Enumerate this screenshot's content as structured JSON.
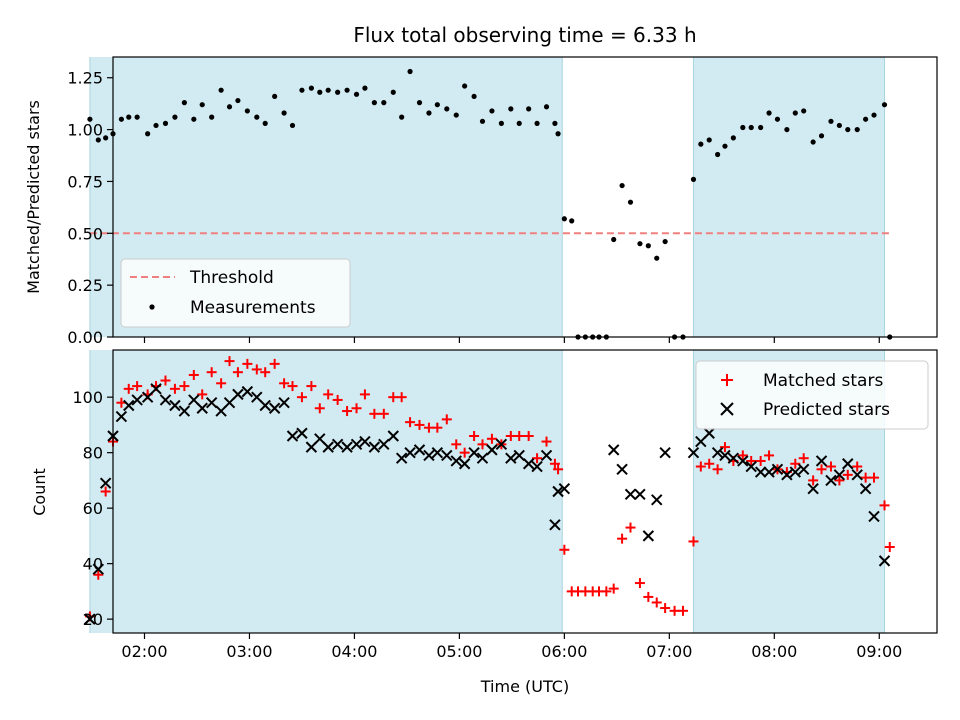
{
  "figure": {
    "title": "Flux total observing time = 6.33 h"
  },
  "chart_data": [
    {
      "type": "scatter",
      "panel": "top",
      "title": "Flux total observing time = 6.33 h",
      "xlabel": "",
      "ylabel": "Matched/Predicted stars",
      "xlim": [
        1.7,
        9.55
      ],
      "ylim": [
        0.0,
        1.35
      ],
      "yticks": [
        0.0,
        0.25,
        0.5,
        0.75,
        1.0,
        1.25
      ],
      "yticklabels": [
        "0.00",
        "0.25",
        "0.50",
        "0.75",
        "1.00",
        "1.25"
      ],
      "xticks": [
        2,
        3,
        4,
        5,
        6,
        7,
        8,
        9
      ],
      "xticklabels": [
        "",
        "",
        "",
        "",
        "",
        "",
        "",
        ""
      ],
      "x_unit": "hours UTC",
      "shaded_intervals": [
        [
          1.48,
          5.98
        ],
        [
          7.23,
          9.05
        ]
      ],
      "shade_color": "#add8e6",
      "legend_position": "lower-left",
      "legend": [
        "Threshold",
        "Measurements"
      ],
      "threshold": {
        "name": "Threshold",
        "y": 0.5,
        "x_range": [
          1.48,
          9.1
        ],
        "color": "#f08080",
        "style": "dashed"
      },
      "series": [
        {
          "name": "Measurements",
          "color": "#000000",
          "marker": "dot",
          "x": [
            1.48,
            1.56,
            1.63,
            1.7,
            1.78,
            1.85,
            1.93,
            2.03,
            2.11,
            2.2,
            2.29,
            2.38,
            2.47,
            2.55,
            2.64,
            2.73,
            2.81,
            2.89,
            2.98,
            3.07,
            3.15,
            3.24,
            3.33,
            3.41,
            3.5,
            3.59,
            3.67,
            3.75,
            3.84,
            3.93,
            4.02,
            4.1,
            4.19,
            4.28,
            4.37,
            4.45,
            4.53,
            4.62,
            4.71,
            4.79,
            4.88,
            4.97,
            5.05,
            5.14,
            5.22,
            5.31,
            5.4,
            5.49,
            5.57,
            5.66,
            5.74,
            5.83,
            5.91,
            5.94,
            6.0,
            6.07,
            6.13,
            6.2,
            6.27,
            6.33,
            6.4,
            6.47,
            6.55,
            6.63,
            6.72,
            6.8,
            6.88,
            6.96,
            7.05,
            7.13,
            7.23,
            7.3,
            7.38,
            7.46,
            7.53,
            7.61,
            7.7,
            7.78,
            7.87,
            7.95,
            8.03,
            8.12,
            8.2,
            8.28,
            8.37,
            8.45,
            8.54,
            8.62,
            8.7,
            8.79,
            8.87,
            8.95,
            9.05,
            9.1
          ],
          "y": [
            1.05,
            0.95,
            0.96,
            0.98,
            1.05,
            1.06,
            1.06,
            0.98,
            1.02,
            1.03,
            1.06,
            1.13,
            1.05,
            1.12,
            1.06,
            1.19,
            1.11,
            1.14,
            1.09,
            1.06,
            1.03,
            1.16,
            1.08,
            1.02,
            1.19,
            1.2,
            1.18,
            1.19,
            1.18,
            1.19,
            1.17,
            1.2,
            1.13,
            1.13,
            1.18,
            1.06,
            1.28,
            1.13,
            1.08,
            1.12,
            1.1,
            1.07,
            1.21,
            1.16,
            1.04,
            1.09,
            1.03,
            1.1,
            1.03,
            1.1,
            1.03,
            1.11,
            1.03,
            0.98,
            0.57,
            0.56,
            0.0,
            0.0,
            0.0,
            0.0,
            0.0,
            0.47,
            0.73,
            0.65,
            0.45,
            0.44,
            0.38,
            0.46,
            0.0,
            0.0,
            0.76,
            0.93,
            0.95,
            0.88,
            0.92,
            0.96,
            1.01,
            1.01,
            1.01,
            1.08,
            1.05,
            1.0,
            1.08,
            1.09,
            0.94,
            0.97,
            1.04,
            1.02,
            1.0,
            1.0,
            1.05,
            1.07,
            1.12,
            0.0
          ]
        }
      ]
    },
    {
      "type": "scatter",
      "panel": "bottom",
      "title": "",
      "xlabel": "Time (UTC)",
      "ylabel": "Count",
      "xlim": [
        1.7,
        9.55
      ],
      "ylim": [
        15,
        117
      ],
      "yticks": [
        20,
        40,
        60,
        80,
        100
      ],
      "yticklabels": [
        "20",
        "40",
        "60",
        "80",
        "100"
      ],
      "xticks": [
        2,
        3,
        4,
        5,
        6,
        7,
        8,
        9
      ],
      "xticklabels": [
        "02:00",
        "03:00",
        "04:00",
        "05:00",
        "06:00",
        "07:00",
        "08:00",
        "09:00"
      ],
      "x_unit": "hours UTC",
      "shaded_intervals": [
        [
          1.48,
          5.98
        ],
        [
          7.23,
          9.05
        ]
      ],
      "shade_color": "#add8e6",
      "legend_position": "upper-right",
      "legend": [
        "Matched stars",
        "Predicted stars"
      ],
      "series": [
        {
          "name": "Matched stars",
          "color": "#ff0000",
          "marker": "plus",
          "x": [
            1.48,
            1.56,
            1.63,
            1.7,
            1.78,
            1.85,
            1.93,
            2.03,
            2.11,
            2.2,
            2.29,
            2.38,
            2.47,
            2.55,
            2.64,
            2.73,
            2.81,
            2.89,
            2.98,
            3.07,
            3.15,
            3.24,
            3.33,
            3.41,
            3.5,
            3.59,
            3.67,
            3.75,
            3.84,
            3.93,
            4.02,
            4.1,
            4.19,
            4.28,
            4.37,
            4.45,
            4.53,
            4.62,
            4.71,
            4.79,
            4.88,
            4.97,
            5.05,
            5.14,
            5.22,
            5.31,
            5.4,
            5.49,
            5.57,
            5.66,
            5.74,
            5.83,
            5.91,
            5.94,
            6.0,
            6.07,
            6.13,
            6.2,
            6.27,
            6.33,
            6.4,
            6.47,
            6.55,
            6.63,
            6.72,
            6.8,
            6.88,
            6.96,
            7.05,
            7.13,
            7.23,
            7.3,
            7.38,
            7.46,
            7.53,
            7.61,
            7.7,
            7.78,
            7.87,
            7.95,
            8.03,
            8.12,
            8.2,
            8.28,
            8.37,
            8.45,
            8.54,
            8.62,
            8.7,
            8.79,
            8.87,
            8.95,
            9.05,
            9.1
          ],
          "y": [
            21,
            36,
            66,
            84,
            98,
            103,
            104,
            101,
            104,
            106,
            103,
            104,
            108,
            101,
            109,
            105,
            113,
            109,
            112,
            110,
            109,
            112,
            105,
            104,
            100,
            104,
            96,
            101,
            99,
            95,
            96,
            101,
            94,
            94,
            100,
            100,
            91,
            90,
            89,
            89,
            92,
            83,
            80,
            86,
            83,
            85,
            83,
            86,
            86,
            86,
            78,
            84,
            76,
            74,
            45,
            30,
            30,
            30,
            30,
            30,
            30,
            31,
            49,
            53,
            33,
            28,
            26,
            24,
            23,
            23,
            48,
            75,
            76,
            74,
            82,
            77,
            79,
            77,
            77,
            79,
            74,
            73,
            76,
            78,
            70,
            74,
            75,
            70,
            72,
            75,
            71,
            71,
            61,
            46
          ]
        },
        {
          "name": "Predicted stars",
          "color": "#000000",
          "marker": "x",
          "x": [
            1.48,
            1.56,
            1.63,
            1.7,
            1.78,
            1.85,
            1.93,
            2.03,
            2.11,
            2.2,
            2.29,
            2.38,
            2.47,
            2.55,
            2.64,
            2.73,
            2.81,
            2.89,
            2.98,
            3.07,
            3.15,
            3.24,
            3.33,
            3.41,
            3.5,
            3.59,
            3.67,
            3.75,
            3.84,
            3.93,
            4.02,
            4.1,
            4.19,
            4.28,
            4.37,
            4.45,
            4.53,
            4.62,
            4.71,
            4.79,
            4.88,
            4.97,
            5.05,
            5.14,
            5.22,
            5.31,
            5.4,
            5.49,
            5.57,
            5.66,
            5.74,
            5.83,
            5.91,
            5.94,
            6.0,
            6.47,
            6.55,
            6.63,
            6.72,
            6.8,
            6.88,
            6.96,
            7.23,
            7.3,
            7.38,
            7.46,
            7.53,
            7.61,
            7.7,
            7.78,
            7.87,
            7.95,
            8.03,
            8.12,
            8.2,
            8.28,
            8.37,
            8.45,
            8.54,
            8.62,
            8.7,
            8.79,
            8.87,
            8.95,
            9.05
          ],
          "y": [
            20,
            38,
            69,
            86,
            93,
            97,
            99,
            100,
            103,
            99,
            97,
            95,
            99,
            96,
            98,
            95,
            98,
            101,
            102,
            100,
            97,
            96,
            98,
            86,
            87,
            82,
            85,
            82,
            83,
            82,
            83,
            84,
            82,
            83,
            86,
            78,
            80,
            81,
            79,
            80,
            79,
            77,
            76,
            80,
            78,
            81,
            83,
            78,
            79,
            76,
            75,
            79,
            54,
            66,
            67,
            81,
            74,
            65,
            65,
            50,
            63,
            80,
            80,
            84,
            87,
            80,
            79,
            78,
            77,
            75,
            73,
            73,
            74,
            72,
            73,
            74,
            67,
            77,
            70,
            72,
            76,
            72,
            67,
            57,
            41
          ],
          "y_note": ""
        }
      ]
    }
  ]
}
